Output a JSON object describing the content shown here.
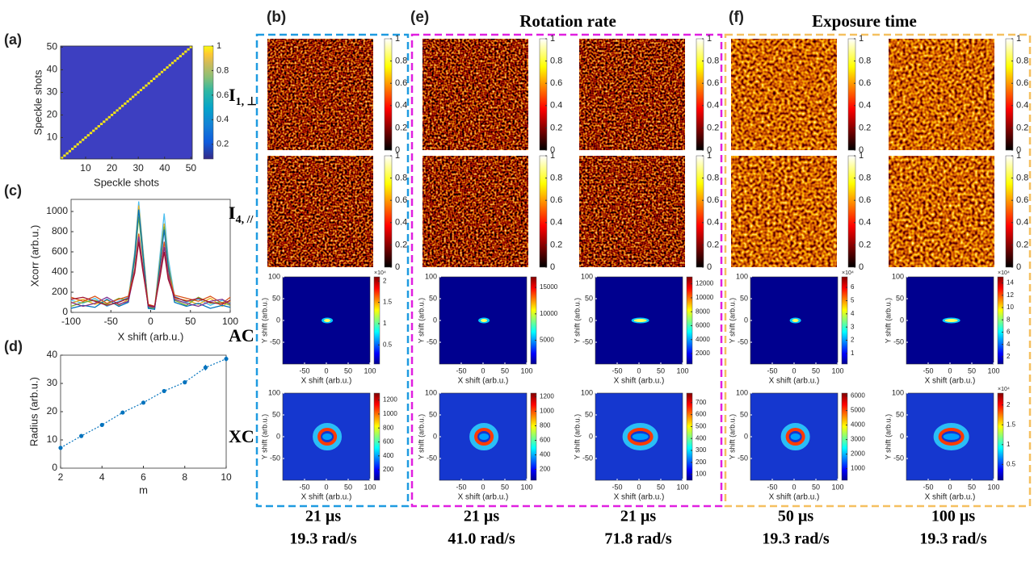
{
  "chart_data": [
    {
      "type": "heatmap",
      "panel": "(a)",
      "xlabel": "Speckle shots",
      "ylabel": "Speckle shots",
      "xlim": [
        0.5,
        50.5
      ],
      "ylim": [
        0.5,
        50.5
      ],
      "xticks": [
        10,
        20,
        30,
        40,
        50
      ],
      "yticks": [
        10,
        20,
        30,
        40,
        50
      ],
      "colorbar_lim": [
        0.08,
        1
      ],
      "colorbar_ticks": [
        0.2,
        0.4,
        0.6,
        0.8,
        1
      ]
    },
    {
      "type": "line",
      "panel": "(c)",
      "xlabel": "X shift (arb.u.)",
      "ylabel": "Xcorr (arb.u.)",
      "xlim": [
        -100,
        100
      ],
      "ylim": [
        0,
        1120
      ],
      "xticks": [
        -100,
        -50,
        0,
        50,
        100
      ],
      "yticks": [
        0,
        200,
        400,
        600,
        800,
        1000
      ],
      "x": [
        -100,
        -85,
        -70,
        -55,
        -40,
        -28,
        -20,
        -15,
        -10,
        -3,
        5,
        12,
        17,
        22,
        30,
        45,
        60,
        75,
        90,
        100
      ],
      "series": [
        {
          "color": "#4dbeee",
          "values": [
            120,
            90,
            140,
            60,
            110,
            150,
            600,
            1100,
            660,
            60,
            40,
            590,
            980,
            540,
            160,
            100,
            130,
            70,
            120,
            90
          ]
        },
        {
          "color": "#edb120",
          "values": [
            90,
            130,
            80,
            120,
            70,
            130,
            580,
            1060,
            640,
            70,
            50,
            530,
            880,
            480,
            140,
            120,
            80,
            140,
            60,
            110
          ]
        },
        {
          "color": "#77ac30",
          "values": [
            60,
            100,
            120,
            80,
            140,
            120,
            520,
            950,
            570,
            50,
            40,
            510,
            850,
            470,
            120,
            70,
            150,
            90,
            100,
            70
          ]
        },
        {
          "color": "#0072bd",
          "values": [
            40,
            70,
            50,
            130,
            60,
            100,
            560,
            1020,
            610,
            40,
            30,
            490,
            820,
            450,
            100,
            60,
            90,
            40,
            70,
            50
          ]
        },
        {
          "color": "#d95319",
          "values": [
            150,
            110,
            160,
            90,
            130,
            160,
            430,
            780,
            470,
            80,
            60,
            420,
            700,
            390,
            170,
            140,
            110,
            160,
            90,
            150
          ]
        },
        {
          "color": "#7e2f8e",
          "values": [
            100,
            60,
            90,
            150,
            80,
            110,
            410,
            750,
            450,
            60,
            50,
            390,
            650,
            360,
            130,
            90,
            60,
            110,
            130,
            80
          ]
        },
        {
          "color": "#a2142f",
          "values": [
            130,
            150,
            110,
            70,
            100,
            140,
            390,
            700,
            420,
            70,
            60,
            360,
            600,
            330,
            150,
            110,
            140,
            100,
            80,
            120
          ]
        }
      ]
    },
    {
      "type": "errorbar",
      "panel": "(d)",
      "xlabel": "m",
      "ylabel": "Radius (arb.u.)",
      "color": "#0072bd",
      "xlim": [
        2,
        10
      ],
      "ylim": [
        0,
        40
      ],
      "xticks": [
        2,
        4,
        6,
        8,
        10
      ],
      "yticks": [
        0,
        10,
        20,
        30,
        40
      ],
      "x": [
        2,
        3,
        4,
        5,
        6,
        7,
        8,
        9,
        10
      ],
      "values": [
        7.2,
        11.4,
        15.3,
        19.7,
        23.2,
        27.3,
        30.4,
        35.6,
        38.7
      ],
      "errors": [
        0.3,
        0.3,
        0.3,
        0.3,
        0.3,
        0.3,
        0.5,
        1.0,
        0.9
      ]
    }
  ],
  "figure": {
    "panels": [
      "(b)",
      "(e)",
      "(f)"
    ],
    "group_titles": [
      "Rotation rate",
      "Exposure time"
    ],
    "row_labels": [
      {
        "main": "I",
        "sub": "1, ⊥"
      },
      {
        "main": "I",
        "sub": "4, //"
      },
      {
        "main": "AC"
      },
      {
        "main": "XC"
      }
    ],
    "speckle_colorbar": {
      "lim": [
        0,
        1
      ],
      "ticks": [
        0,
        0.2,
        0.4,
        0.6,
        0.8,
        1
      ]
    },
    "map_axes": {
      "xlabel": "X shift (arb.u.)",
      "ylabel": "Y shift (arb.u.)",
      "xlim": [
        -100,
        100
      ],
      "ylim": [
        -100,
        100
      ],
      "xticks": [
        -50,
        0,
        50,
        100
      ],
      "yticks": [
        -50,
        0,
        50,
        100
      ]
    },
    "columns": [
      {
        "exposure": "21 µs",
        "rate": "19.3 rad/s",
        "ac": {
          "lim": [
            0.05,
            2.1
          ],
          "ticks": [
            0.5,
            1,
            1.5,
            2
          ],
          "exponent": "×10⁴"
        },
        "xc": {
          "lim": [
            50,
            1300
          ],
          "ticks": [
            200,
            400,
            600,
            800,
            1000,
            1200
          ]
        }
      },
      {
        "exposure": "21 µs",
        "rate": "41.0 rad/s",
        "ac": {
          "lim": [
            500,
            17000
          ],
          "ticks": [
            5000,
            10000,
            15000
          ]
        },
        "xc": {
          "lim": [
            50,
            1250
          ],
          "ticks": [
            200,
            400,
            600,
            800,
            1000,
            1200
          ]
        }
      },
      {
        "exposure": "21 µs",
        "rate": "71.8 rad/s",
        "ac": {
          "lim": [
            500,
            13000
          ],
          "ticks": [
            2000,
            4000,
            6000,
            8000,
            10000,
            12000
          ]
        },
        "xc": {
          "lim": [
            50,
            780
          ],
          "ticks": [
            100,
            200,
            300,
            400,
            500,
            600,
            700
          ]
        }
      },
      {
        "exposure": "50 µs",
        "rate": "19.3 rad/s",
        "ac": {
          "lim": [
            0.2,
            6.8
          ],
          "ticks": [
            1,
            2,
            3,
            4,
            5,
            6
          ],
          "exponent": "×10⁴"
        },
        "xc": {
          "lim": [
            200,
            6200
          ],
          "ticks": [
            1000,
            2000,
            3000,
            4000,
            5000,
            6000
          ]
        }
      },
      {
        "exposure": "100 µs",
        "rate": "19.3 rad/s",
        "ac": {
          "lim": [
            0.8,
            15
          ],
          "ticks": [
            2,
            4,
            6,
            8,
            10,
            12,
            14
          ],
          "exponent": "×10⁴"
        },
        "xc": {
          "lim": [
            0.1,
            2.3
          ],
          "ticks": [
            0.5,
            1,
            1.5,
            2
          ],
          "exponent": "×10⁴"
        }
      }
    ]
  }
}
